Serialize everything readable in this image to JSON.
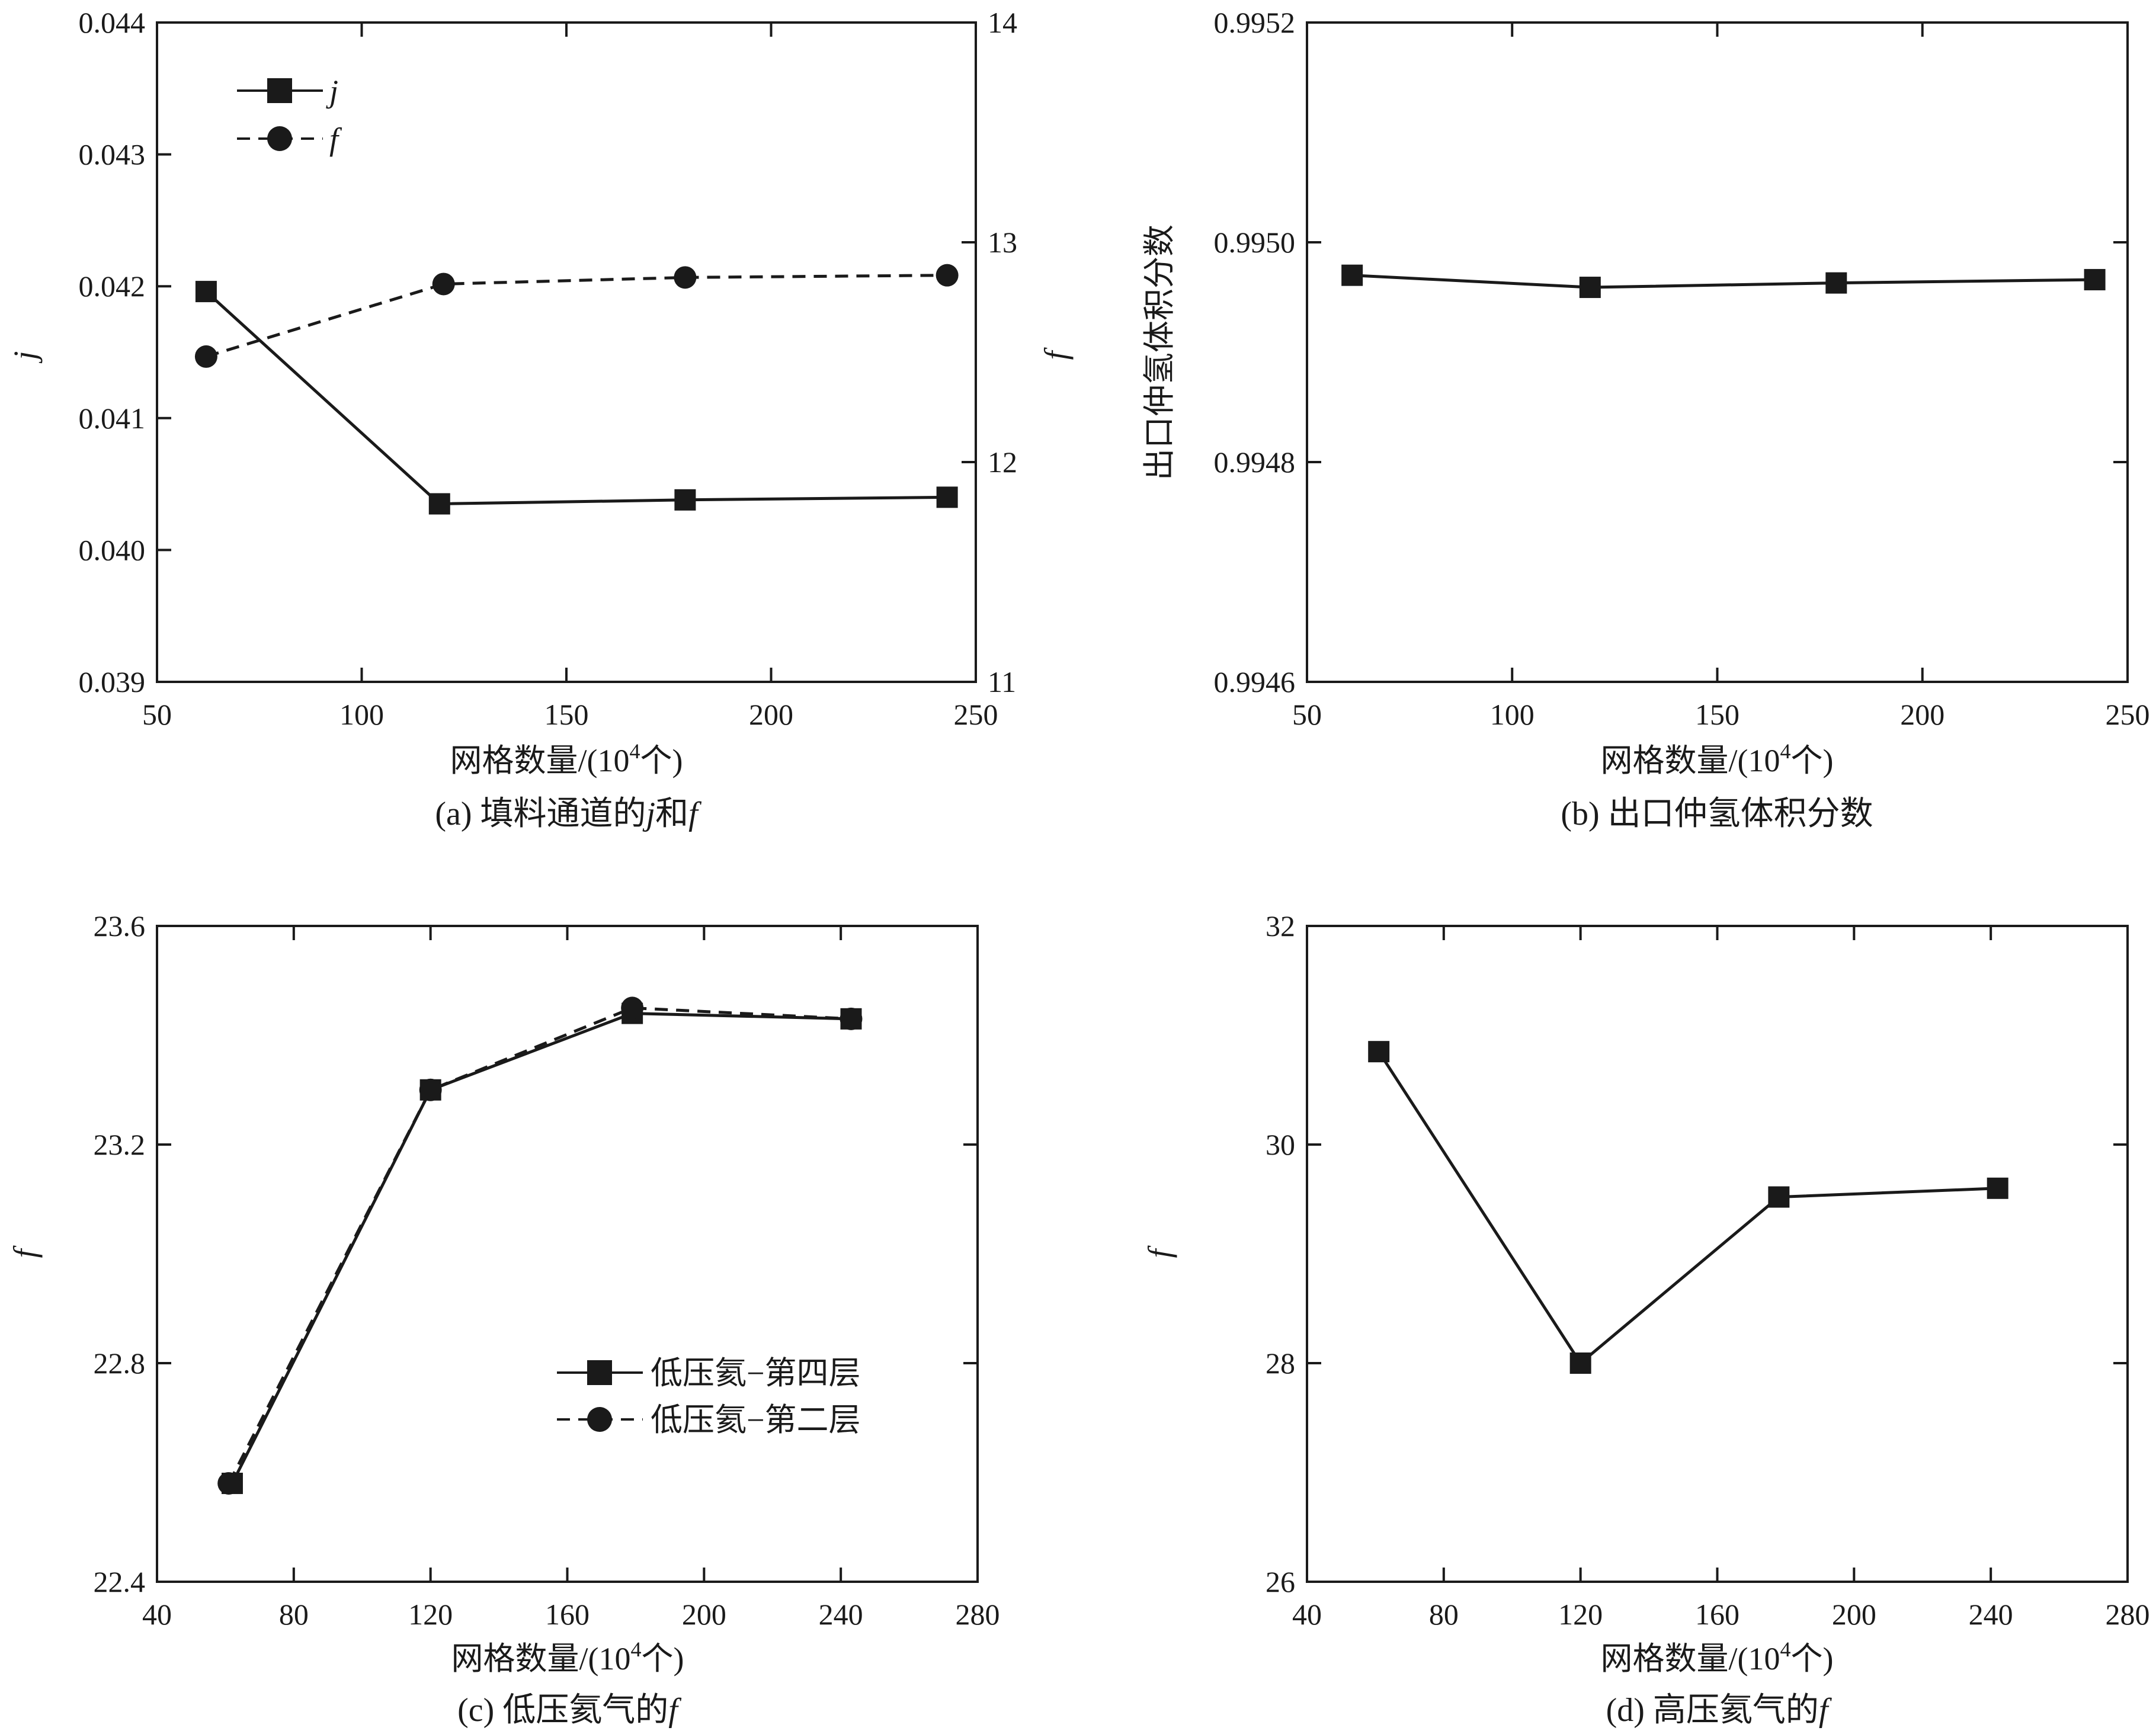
{
  "figure": {
    "colors": {
      "ink": "#1a1a1a",
      "background": "#ffffff"
    }
  },
  "chart_data": [
    {
      "id": "a",
      "type": "line",
      "caption_prefix": "(a) 填料通道的",
      "caption_j": "j",
      "caption_mid": "和",
      "caption_f": "f",
      "xlabel": "网格数量/(10",
      "xlabel_sup": "4",
      "xlabel_suffix": "个)",
      "ylabel": "j",
      "y2label": "f",
      "xlim": [
        50,
        250
      ],
      "xticks": [
        "50",
        "100",
        "150",
        "200",
        "250"
      ],
      "ylim": [
        0.039,
        0.044
      ],
      "yticks": [
        "0.039",
        "0.040",
        "0.041",
        "0.042",
        "0.043",
        "0.044"
      ],
      "y2lim": [
        11,
        14
      ],
      "y2ticks": [
        "11",
        "12",
        "13",
        "14"
      ],
      "legend_position": "top-left",
      "series": [
        {
          "name": "j",
          "axis": "left",
          "marker": "square",
          "dash": "solid",
          "x": [
            62,
            119,
            179,
            243
          ],
          "values": [
            0.04196,
            0.04035,
            0.04038,
            0.0404
          ]
        },
        {
          "name": "f",
          "axis": "right",
          "marker": "circle",
          "dash": "dashed",
          "x": [
            62,
            120,
            179,
            243
          ],
          "values": [
            12.48,
            12.81,
            12.84,
            12.85
          ]
        }
      ]
    },
    {
      "id": "b",
      "type": "line",
      "caption": "(b) 出口仲氢体积分数",
      "xlabel": "网格数量/(10",
      "xlabel_sup": "4",
      "xlabel_suffix": "个)",
      "ylabel": "出口仲氢体积分数",
      "xlim": [
        50,
        250
      ],
      "xticks": [
        "50",
        "100",
        "150",
        "200",
        "250"
      ],
      "ylim": [
        0.9946,
        0.9952
      ],
      "yticks": [
        "0.9946",
        "0.9948",
        "0.9950",
        "0.9952"
      ],
      "series": [
        {
          "name": "出口仲氢体积分数",
          "marker": "square",
          "dash": "solid",
          "x": [
            61,
            119,
            179,
            242
          ],
          "values": [
            0.99497,
            0.994959,
            0.994963,
            0.994966
          ]
        }
      ]
    },
    {
      "id": "c",
      "type": "line",
      "caption_prefix": "(c) 低压氦气的",
      "caption_f": "f",
      "xlabel": "网格数量/(10",
      "xlabel_sup": "4",
      "xlabel_suffix": "个)",
      "ylabel": "f",
      "xlim": [
        40,
        280
      ],
      "xticks": [
        "40",
        "80",
        "120",
        "160",
        "200",
        "240",
        "280"
      ],
      "ylim": [
        22.4,
        23.6
      ],
      "yticks": [
        "22.4",
        "22.8",
        "23.2",
        "23.6"
      ],
      "legend_position": "lower-right",
      "series": [
        {
          "name": "低压氦−第四层",
          "marker": "square",
          "dash": "solid",
          "x": [
            62,
            120,
            179,
            243
          ],
          "values": [
            22.58,
            23.3,
            23.44,
            23.43
          ]
        },
        {
          "name": "低压氦−第二层",
          "marker": "circle",
          "dash": "dashed",
          "x": [
            61,
            120,
            179,
            243
          ],
          "values": [
            22.58,
            23.3,
            23.45,
            23.43
          ]
        }
      ]
    },
    {
      "id": "d",
      "type": "line",
      "caption_prefix": "(d) 高压氦气的",
      "caption_f": "f",
      "xlabel": "网格数量/(10",
      "xlabel_sup": "4",
      "xlabel_suffix": "个)",
      "ylabel": "f",
      "xlim": [
        40,
        280
      ],
      "xticks": [
        "40",
        "80",
        "120",
        "160",
        "200",
        "240",
        "280"
      ],
      "ylim": [
        26,
        32
      ],
      "yticks": [
        "26",
        "28",
        "30",
        "32"
      ],
      "series": [
        {
          "name": "f",
          "marker": "square",
          "dash": "solid",
          "x": [
            61,
            120,
            178,
            242
          ],
          "values": [
            30.85,
            28.0,
            29.52,
            29.6
          ]
        }
      ]
    }
  ]
}
